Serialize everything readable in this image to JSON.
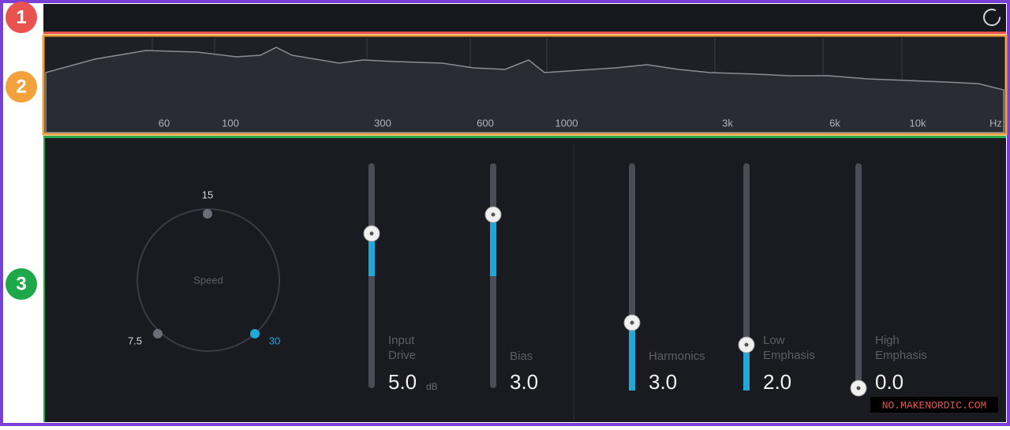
{
  "badges": [
    "1",
    "2",
    "3"
  ],
  "spectrum": {
    "freq_labels": [
      "60",
      "100",
      "300",
      "600",
      "1000",
      "3k",
      "6k",
      "10k",
      "Hz"
    ]
  },
  "speed": {
    "label": "Speed",
    "options": [
      "15",
      "7.5",
      "30"
    ]
  },
  "sliders": [
    {
      "label_lines": [
        "Input",
        "Drive"
      ],
      "value": "5.0",
      "unit": "dB"
    },
    {
      "label_lines": [
        "Bias"
      ],
      "value": "3.0"
    },
    {
      "label_lines": [
        "Harmonics"
      ],
      "value": "3.0"
    },
    {
      "label_lines": [
        "Low",
        "Emphasis"
      ],
      "value": "2.0"
    },
    {
      "label_lines": [
        "High",
        "Emphasis"
      ],
      "value": "0.0"
    }
  ],
  "watermark": "NO.MAKENORDIC.COM"
}
